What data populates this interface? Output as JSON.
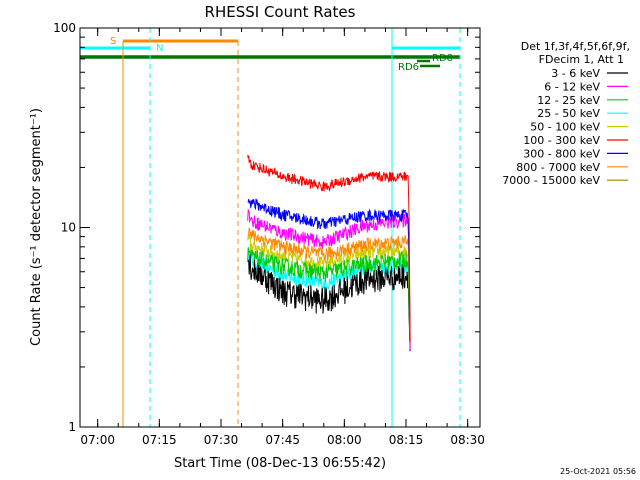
{
  "chart_data": {
    "type": "line",
    "title": "RHESSI Count Rates",
    "xlabel": "Start Time (08-Dec-13 06:55:42)",
    "ylabel": "Count Rate (s⁻¹ detector segment⁻¹)",
    "y_scale": "log",
    "ylim": [
      1,
      100
    ],
    "xlim": [
      "06:55:42",
      "08:33:00"
    ],
    "x_tick_labels": [
      "07:00",
      "07:15",
      "07:30",
      "07:45",
      "08:00",
      "08:15",
      "08:30"
    ],
    "y_tick_labels": [
      "1",
      "10",
      "100"
    ],
    "grid": false,
    "legend_header": [
      "Det 1f,3f,4f,5f,6f,9f,",
      "FDecim 1, Att 1"
    ],
    "legend_placement": "right",
    "timestamp": "25-Oct-2021 05:56",
    "series": [
      {
        "name": "3 - 6 keV",
        "color": "#000000",
        "x": [
          "07:36:30",
          "07:45:00",
          "07:55:00",
          "08:05:00",
          "08:15:30"
        ],
        "values": [
          6.5,
          4.8,
          4.3,
          5.5,
          5.8
        ]
      },
      {
        "name": "6 - 12 keV",
        "color": "#ff00ff",
        "x": [
          "07:36:30",
          "07:45:00",
          "07:55:00",
          "08:05:00",
          "08:15:30"
        ],
        "values": [
          11.0,
          9.4,
          8.4,
          10.2,
          11.0
        ]
      },
      {
        "name": "12 - 25 keV",
        "color": "#00cc00",
        "x": [
          "07:36:30",
          "07:45:00",
          "07:55:00",
          "08:05:00",
          "08:15:30"
        ],
        "values": [
          7.2,
          6.4,
          5.9,
          6.6,
          6.9
        ]
      },
      {
        "name": "25 - 50 keV",
        "color": "#00ffff",
        "x": [
          "07:36:30",
          "07:45:00",
          "07:55:00",
          "08:05:00",
          "08:15:30"
        ],
        "values": [
          7.0,
          5.8,
          5.2,
          6.2,
          6.4
        ]
      },
      {
        "name": "50 - 100 keV",
        "color": "#cccc00",
        "x": [
          "07:36:30",
          "07:45:00",
          "07:55:00",
          "08:05:00",
          "08:15:30"
        ],
        "values": [
          8.2,
          7.2,
          6.6,
          7.5,
          7.6
        ]
      },
      {
        "name": "100 - 300 keV",
        "color": "#ff0000",
        "x": [
          "07:36:30",
          "07:45:00",
          "07:55:00",
          "08:05:00",
          "08:15:30"
        ],
        "values": [
          21.0,
          18.0,
          16.0,
          18.0,
          18.0
        ]
      },
      {
        "name": "300 - 800 keV",
        "color": "#0000ff",
        "x": [
          "07:36:30",
          "07:45:00",
          "07:55:00",
          "08:05:00",
          "08:15:30"
        ],
        "values": [
          13.5,
          11.6,
          10.4,
          11.5,
          11.5
        ]
      },
      {
        "name": "800 - 7000 keV",
        "color": "#ff8800",
        "x": [
          "07:36:30",
          "07:45:00",
          "07:55:00",
          "08:05:00",
          "08:15:30"
        ],
        "values": [
          9.3,
          8.0,
          7.3,
          8.2,
          8.5
        ]
      },
      {
        "name": "7000 - 15000 keV",
        "color": "#aa7700",
        "x": [],
        "values": []
      }
    ],
    "annotations": [
      {
        "label": "S",
        "color": "#ff8800"
      },
      {
        "label": "N",
        "color": "#00ffff"
      },
      {
        "label": "RD6",
        "color": "#007700"
      },
      {
        "label": "RD8",
        "color": "#007700"
      }
    ]
  }
}
